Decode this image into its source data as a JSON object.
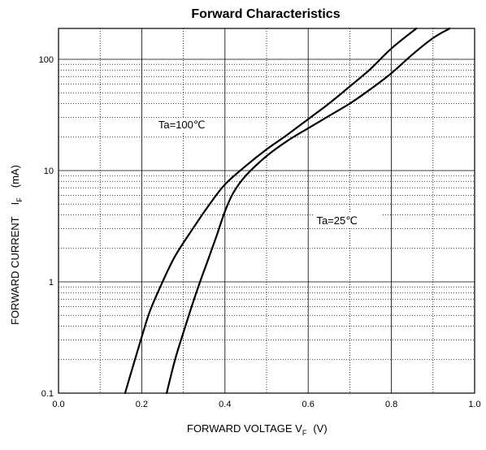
{
  "chart_data": {
    "type": "line",
    "title": "Forward Characteristics",
    "xlabel": {
      "main": "FORWARD VOLTAGE   V",
      "sub": "F",
      "unit": "(V)"
    },
    "ylabel": {
      "main": "FORWARD CURRENT",
      "sub": "F",
      "prefix": "I",
      "unit": "(mA)"
    },
    "x_scale": "linear",
    "y_scale": "log",
    "xlim": [
      0.0,
      1.0
    ],
    "ylim": [
      0.1,
      200
    ],
    "x_ticks": [
      "0.0",
      "0.2",
      "0.4",
      "0.6",
      "0.8",
      "1.0"
    ],
    "y_ticks": [
      "0.1",
      "1",
      "10",
      "100"
    ],
    "grid": true,
    "series": [
      {
        "name": "Ta=100℃",
        "x": [
          0.16,
          0.18,
          0.2,
          0.22,
          0.25,
          0.28,
          0.32,
          0.36,
          0.4,
          0.45,
          0.5,
          0.55,
          0.6,
          0.65,
          0.7,
          0.75,
          0.8,
          0.86
        ],
        "y": [
          0.1,
          0.18,
          0.32,
          0.55,
          1.0,
          1.7,
          2.9,
          4.8,
          7.5,
          11,
          15.5,
          21,
          29,
          40,
          57,
          82,
          125,
          200
        ]
      },
      {
        "name": "Ta=25℃",
        "x": [
          0.26,
          0.28,
          0.3,
          0.32,
          0.34,
          0.36,
          0.38,
          0.4,
          0.42,
          0.45,
          0.5,
          0.55,
          0.6,
          0.65,
          0.7,
          0.75,
          0.8,
          0.85,
          0.9,
          0.94
        ],
        "y": [
          0.1,
          0.2,
          0.35,
          0.6,
          1.0,
          1.6,
          2.6,
          4.3,
          6.3,
          9.0,
          13.5,
          18.5,
          24,
          31,
          40,
          54,
          75,
          110,
          155,
          200
        ]
      }
    ],
    "annotations": [
      {
        "text": "Ta=100℃",
        "x": 0.24,
        "y": 24
      },
      {
        "text": "Ta=25℃",
        "x": 0.62,
        "y": 3.3
      }
    ]
  }
}
